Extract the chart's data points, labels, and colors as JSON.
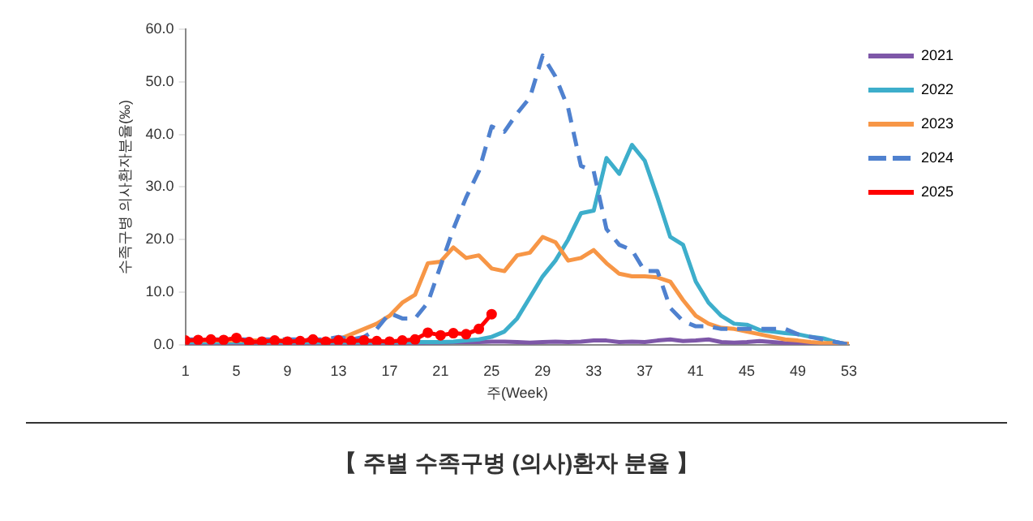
{
  "chart_data": {
    "type": "line",
    "title": "【 주별 수족구병 (의사)환자 분율 】",
    "xlabel": "주(Week)",
    "ylabel": "수족구병 의사환자분율(‰)",
    "x": [
      1,
      2,
      3,
      4,
      5,
      6,
      7,
      8,
      9,
      10,
      11,
      12,
      13,
      14,
      15,
      16,
      17,
      18,
      19,
      20,
      21,
      22,
      23,
      24,
      25,
      26,
      27,
      28,
      29,
      30,
      31,
      32,
      33,
      34,
      35,
      36,
      37,
      38,
      39,
      40,
      41,
      42,
      43,
      44,
      45,
      46,
      47,
      48,
      49,
      50,
      51,
      52,
      53
    ],
    "xlim": [
      1,
      53
    ],
    "xticks": [
      1,
      5,
      9,
      13,
      17,
      21,
      25,
      29,
      33,
      37,
      41,
      45,
      49,
      53
    ],
    "ylim": [
      0,
      60
    ],
    "yticks": [
      {
        "value": 0,
        "label": "0.0"
      },
      {
        "value": 10,
        "label": "10.0"
      },
      {
        "value": 20,
        "label": "20.0"
      },
      {
        "value": 30,
        "label": "30.0"
      },
      {
        "value": 40,
        "label": "40.0"
      },
      {
        "value": 50,
        "label": "50.0"
      },
      {
        "value": 60,
        "label": "60.0"
      }
    ],
    "grid": false,
    "legend": "top right",
    "series": [
      {
        "name": "2021",
        "color": "#7e57a8",
        "values": [
          0.3,
          0.3,
          0.3,
          0.3,
          0.3,
          0.3,
          0.3,
          0.3,
          0.3,
          0.3,
          0.3,
          0.3,
          0.3,
          0.3,
          0.3,
          0.3,
          0.3,
          0.3,
          0.3,
          0.4,
          0.4,
          0.5,
          0.5,
          0.5,
          0.6,
          0.6,
          0.5,
          0.4,
          0.5,
          0.6,
          0.5,
          0.6,
          0.8,
          0.8,
          0.5,
          0.6,
          0.5,
          0.8,
          1.0,
          0.7,
          0.8,
          1.0,
          0.5,
          0.4,
          0.5,
          0.7,
          0.5,
          0.3,
          0.2,
          0.2,
          0.2,
          0.2,
          0.1
        ]
      },
      {
        "name": "2022",
        "color": "#3daecb",
        "values": [
          0.5,
          0.5,
          0.5,
          0.5,
          0.5,
          0.5,
          0.5,
          0.5,
          0.5,
          0.5,
          0.5,
          0.5,
          0.5,
          0.5,
          0.5,
          0.5,
          0.5,
          0.5,
          0.5,
          0.5,
          0.5,
          0.6,
          0.8,
          1.0,
          1.5,
          2.5,
          5,
          9,
          13,
          16,
          20,
          25,
          25.5,
          35.5,
          32.5,
          38,
          35,
          28,
          20.5,
          19,
          12,
          8,
          5.5,
          4,
          3.8,
          2.8,
          2.5,
          2.2,
          2,
          1.5,
          1.2,
          0.5,
          0
        ]
      },
      {
        "name": "2023",
        "color": "#f79646",
        "values": [
          0.8,
          0.8,
          0.8,
          0.8,
          0.8,
          0.8,
          0.8,
          0.8,
          0.8,
          0.8,
          0.8,
          0.8,
          1,
          2,
          3,
          4,
          5.5,
          8,
          9.5,
          15.5,
          15.8,
          18.5,
          16.5,
          17,
          14.5,
          14,
          17,
          17.5,
          20.5,
          19.5,
          16,
          16.5,
          18,
          15.5,
          13.5,
          13,
          13,
          12.8,
          12,
          8.5,
          5.5,
          4,
          3.2,
          3,
          2.5,
          2,
          1.5,
          1,
          0.8,
          0.5,
          0.3,
          0.3,
          0.2
        ]
      },
      {
        "name": "2024",
        "color": "#4f81cf",
        "line_style": "dashed",
        "values": [
          1,
          1,
          1,
          1,
          1,
          1,
          1,
          1,
          1,
          1,
          1,
          1,
          1.5,
          1,
          1.5,
          3,
          6,
          5,
          5,
          8,
          15,
          22,
          28,
          33,
          41.5,
          40.5,
          44,
          47,
          55,
          51,
          45,
          34,
          33,
          22,
          19,
          18,
          14,
          14,
          7,
          4.5,
          3.5,
          3.5,
          3,
          3,
          3,
          3,
          3,
          3,
          2,
          1.5,
          1,
          0.5,
          0
        ]
      },
      {
        "name": "2025",
        "color": "#ff0000",
        "marker": "circle",
        "x": [
          1,
          2,
          3,
          4,
          5,
          6,
          7,
          8,
          9,
          10,
          11,
          12,
          13,
          14,
          15,
          16,
          17,
          18,
          19,
          20,
          21,
          22,
          23,
          24,
          25
        ],
        "values": [
          0.8,
          0.9,
          1,
          0.9,
          1.3,
          0.5,
          0.6,
          0.8,
          0.6,
          0.7,
          1.0,
          0.6,
          0.8,
          0.7,
          0.8,
          0.7,
          0.6,
          0.8,
          1.0,
          2.3,
          1.8,
          2.2,
          2.0,
          3.0,
          5.8
        ]
      }
    ]
  }
}
